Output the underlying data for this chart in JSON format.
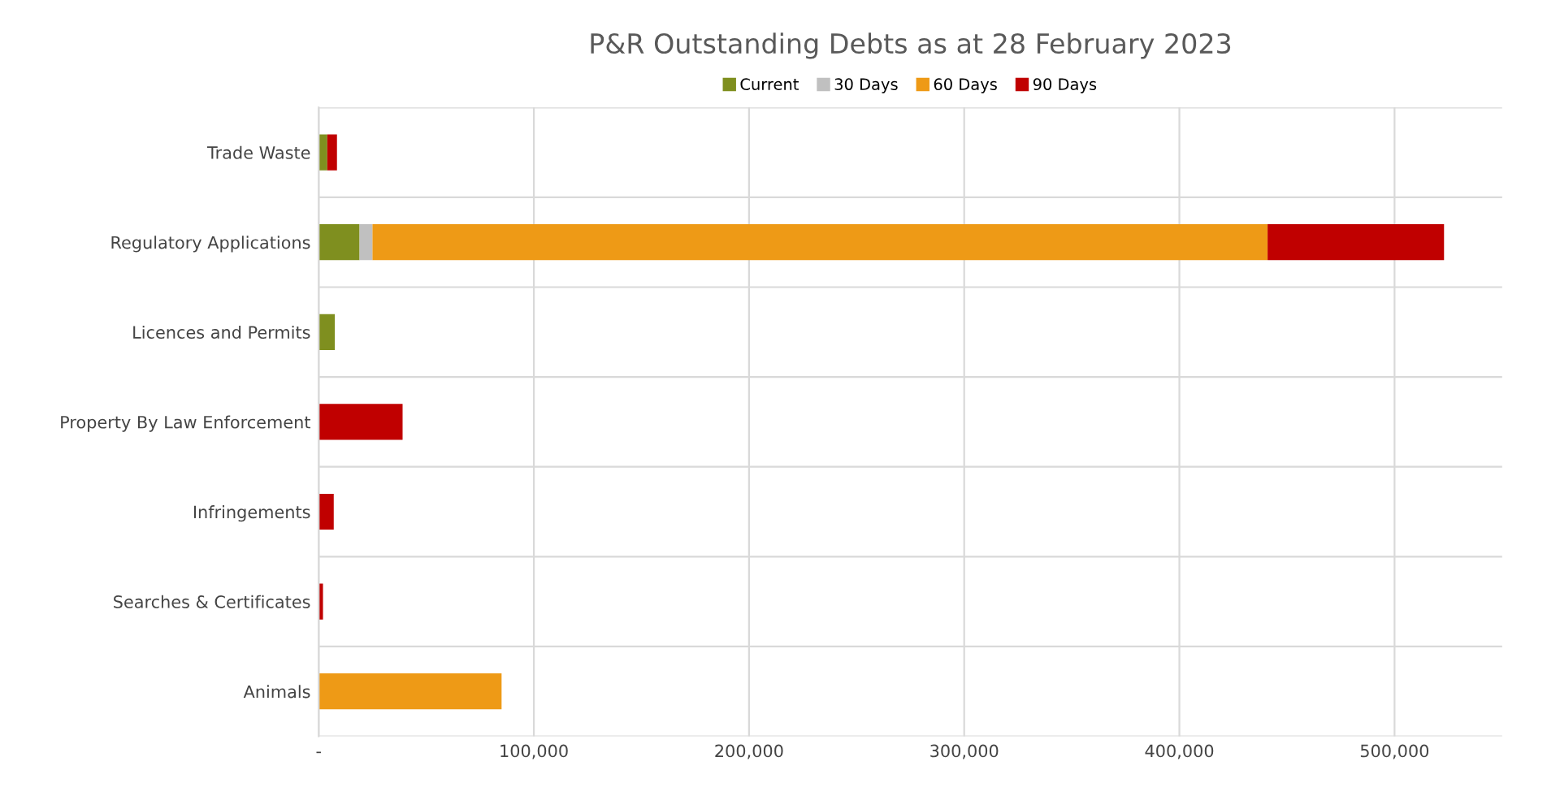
{
  "chart_data": {
    "type": "bar",
    "orientation": "horizontal",
    "stacked": true,
    "title": "P&R Outstanding Debts as at 28 February 2023",
    "categories": [
      "Trade Waste",
      "Regulatory Applications",
      "Licences and Permits",
      "Property By Law Enforcement",
      "Infringements",
      "Searches & Certificates",
      "Animals"
    ],
    "series": [
      {
        "name": "Current",
        "color": "#7f8f1f",
        "values": [
          4000,
          19000,
          7500,
          null,
          null,
          null,
          null
        ]
      },
      {
        "name": "30 Days",
        "color": "#c0c0c0",
        "values": [
          null,
          6000,
          null,
          null,
          null,
          null,
          null
        ]
      },
      {
        "name": "60 Days",
        "color": "#ee9a16",
        "values": [
          null,
          416000,
          null,
          null,
          null,
          null,
          85000
        ]
      },
      {
        "name": "90 Days",
        "color": "#c00000",
        "values": [
          4500,
          82000,
          null,
          39000,
          7000,
          2000,
          null
        ]
      }
    ],
    "xlim": [
      0,
      550000
    ],
    "xticks": [
      {
        "value": 0,
        "label": "-"
      },
      {
        "value": 100000,
        "label": "100,000"
      },
      {
        "value": 200000,
        "label": "200,000"
      },
      {
        "value": 300000,
        "label": "300,000"
      },
      {
        "value": 400000,
        "label": "400,000"
      },
      {
        "value": 500000,
        "label": "500,000"
      }
    ],
    "grid": true,
    "legend": "top"
  }
}
